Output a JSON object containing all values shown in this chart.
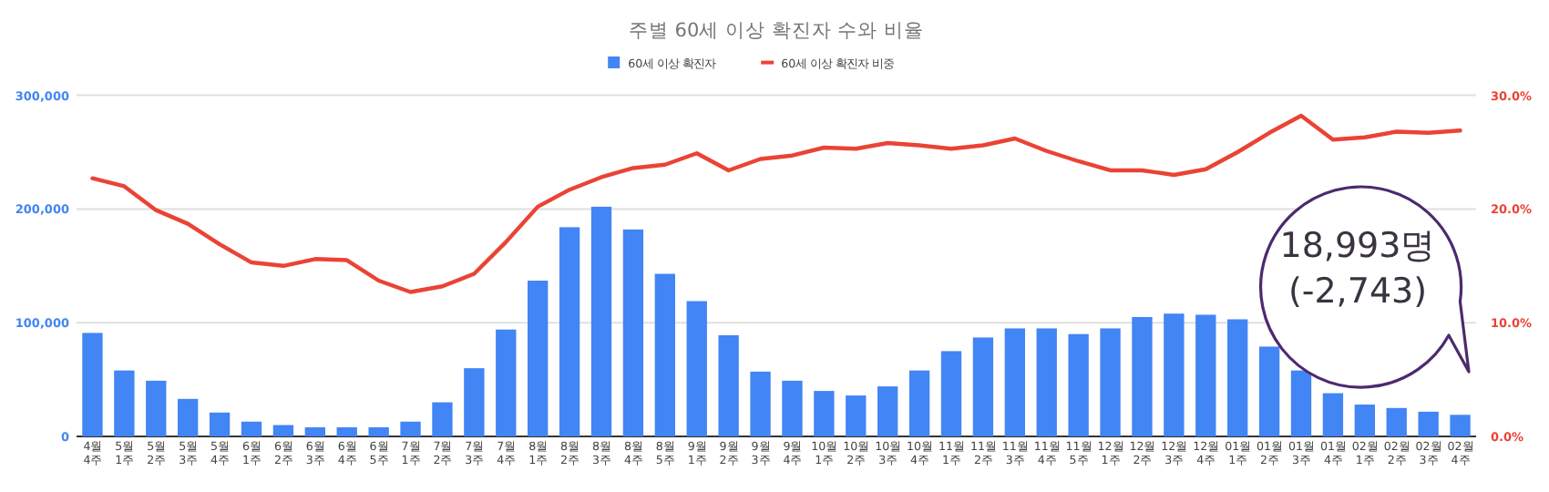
{
  "chart_data": {
    "type": "bar",
    "title": "주별 60세 이상 확진자 수와 비율",
    "categories": [
      "4월 4주",
      "5월 1주",
      "5월 2주",
      "5월 3주",
      "5월 4주",
      "6월 1주",
      "6월 2주",
      "6월 3주",
      "6월 4주",
      "6월 5주",
      "7월 1주",
      "7월 2주",
      "7월 3주",
      "7월 4주",
      "8월 1주",
      "8월 2주",
      "8월 3주",
      "8월 4주",
      "8월 5주",
      "9월 1주",
      "9월 2주",
      "9월 3주",
      "9월 4주",
      "10월 1주",
      "10월 2주",
      "10월 3주",
      "10월 4주",
      "11월 1주",
      "11월 2주",
      "11월 3주",
      "11월 4주",
      "11월 5주",
      "12월 1주",
      "12월 2주",
      "12월 3주",
      "12월 4주",
      "01월 1주",
      "01월 2주",
      "01월 3주",
      "01월 4주",
      "02월 1주",
      "02월 2주",
      "02월 3주",
      "02월 4주"
    ],
    "series": [
      {
        "name": "60세 이상 확진자",
        "axis": "y",
        "color": "#4285f4",
        "values": [
          91000,
          58000,
          49000,
          33000,
          21000,
          13000,
          10000,
          8000,
          8000,
          8000,
          13000,
          30000,
          60000,
          94000,
          137000,
          184000,
          202000,
          182000,
          143000,
          119000,
          89000,
          57000,
          49000,
          40000,
          36000,
          44000,
          58000,
          75000,
          87000,
          95000,
          95000,
          90000,
          95000,
          105000,
          108000,
          107000,
          103000,
          79000,
          58000,
          38000,
          28000,
          25000,
          21736,
          18993
        ]
      },
      {
        "name": "60세 이상 확진자 비중",
        "type": "line",
        "axis": "y2",
        "color": "#ea4335",
        "values": [
          22.7,
          22.0,
          19.9,
          18.7,
          16.9,
          15.3,
          15.0,
          15.6,
          15.5,
          13.7,
          12.7,
          13.2,
          14.3,
          17.1,
          20.2,
          21.7,
          22.8,
          23.6,
          23.9,
          24.9,
          23.4,
          24.4,
          24.7,
          25.4,
          25.3,
          25.8,
          25.6,
          25.3,
          25.6,
          26.2,
          25.1,
          24.2,
          23.4,
          23.4,
          23.0,
          23.5,
          25.0,
          26.7,
          28.2,
          26.1,
          26.3,
          26.8,
          26.7,
          26.9
        ]
      }
    ],
    "ylim": [
      0,
      300000
    ],
    "yticks": [
      0,
      {
        "value": 100000,
        "label": "100,000"
      },
      {
        "value": 200000,
        "label": "200,000"
      },
      {
        "value": 300000,
        "label": "300,000"
      }
    ],
    "y2lim": [
      0,
      30
    ],
    "y2ticks": [
      {
        "value": 0,
        "label": "0.0%"
      },
      {
        "value": 10,
        "label": "10.0%"
      },
      {
        "value": 20,
        "label": "20.0%"
      },
      {
        "value": 30,
        "label": "30.0%"
      }
    ],
    "grid": "y",
    "legend": "top",
    "annotations": [
      "18,993명",
      "(-2,743)"
    ]
  }
}
